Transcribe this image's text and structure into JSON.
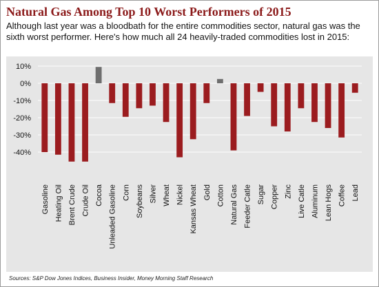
{
  "header": {
    "title": "Natural Gas Among Top 10 Worst Performers of 2015",
    "subtitle": "Although last year was a bloodbath for the entire commodities sector, natural gas was the sixth worst performer. Here's how much all 24 heavily-traded commodities lost in 2015:"
  },
  "footer": {
    "source": "Sources: S&P Dow Jones Indices, Business Insider, Money Morning Staff Research"
  },
  "colors": {
    "negative": "#9b1c1f",
    "positive": "#6e6e6e",
    "plot_background": "#e6e6e6",
    "gridline": "#ffffff"
  },
  "chart_data": {
    "type": "bar",
    "title": "",
    "xlabel": "",
    "ylabel": "",
    "ylim": [
      -50,
      12
    ],
    "yticks": [
      10,
      0,
      -10,
      -20,
      -30,
      -40
    ],
    "ytick_labels": [
      "10%",
      "0%",
      "-10%",
      "-20%",
      "-30%",
      "-40%"
    ],
    "grid": true,
    "categories": [
      "Gasoline",
      "Heating Oil",
      "Brent Crude",
      "Crude Oil",
      "Cocoa",
      "Unleaded Gasoline",
      "Corn",
      "Soybeans",
      "Silver",
      "Wheat",
      "Nickel",
      "Kansas Wheat",
      "Gold",
      "Cotton",
      "Natural Gas",
      "Feeder Catle",
      "Sugar",
      "Copper",
      "Zinc",
      "Live Catle",
      "Aluminum",
      "Lean Hogs",
      "Coffee",
      "Lead"
    ],
    "values": [
      -40,
      -41.5,
      -45.5,
      -45.5,
      9.5,
      -11.5,
      -19.5,
      -14.5,
      -13,
      -22.5,
      -43,
      -32.5,
      -11.5,
      2.5,
      -39,
      -19,
      -5,
      -25,
      -28,
      -14.5,
      -22.5,
      -26,
      -31.5,
      -5.5
    ]
  }
}
